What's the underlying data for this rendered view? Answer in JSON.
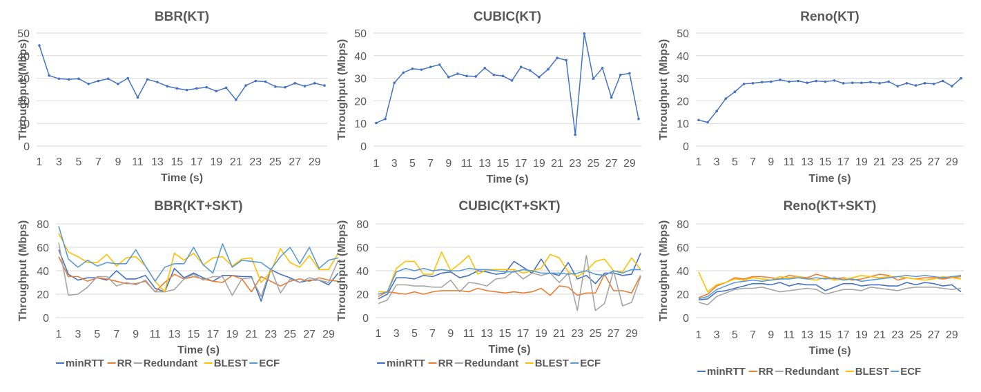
{
  "chart_data": [
    {
      "type": "line",
      "title": "BBR(KT)",
      "xlabel": "Time (s)",
      "ylabel": "Throughput (Mbps)",
      "ylim": [
        0,
        50
      ],
      "yticks": [
        0,
        10,
        20,
        30,
        40,
        50
      ],
      "x": [
        1,
        2,
        3,
        4,
        5,
        6,
        7,
        8,
        9,
        10,
        11,
        12,
        13,
        14,
        15,
        16,
        17,
        18,
        19,
        20,
        21,
        22,
        23,
        24,
        25,
        26,
        27,
        28,
        29,
        30
      ],
      "xtick_labels": [
        "1",
        "3",
        "5",
        "7",
        "9",
        "11",
        "13",
        "15",
        "17",
        "19",
        "21",
        "23",
        "25",
        "27",
        "29"
      ],
      "grid": true,
      "series": [
        {
          "values": [
            44.5,
            31.2,
            29.8,
            29.5,
            29.8,
            27.5,
            28.8,
            29.8,
            27.5,
            30,
            21.5,
            29.5,
            28.3,
            26.5,
            25.5,
            24.8,
            25.5,
            26,
            24.3,
            25.8,
            20.5,
            26.8,
            28.8,
            28.5,
            26.3,
            26,
            27.8,
            26.5,
            27.8,
            26.8
          ]
        }
      ]
    },
    {
      "type": "line",
      "title": "CUBIC(KT)",
      "xlabel": "Time (s)",
      "ylabel": "Throughput (Mbps)",
      "ylim": [
        0,
        50
      ],
      "yticks": [
        0,
        10,
        20,
        30,
        40,
        50
      ],
      "x": [
        1,
        2,
        3,
        4,
        5,
        6,
        7,
        8,
        9,
        10,
        11,
        12,
        13,
        14,
        15,
        16,
        17,
        18,
        19,
        20,
        21,
        22,
        23,
        24,
        25,
        26,
        27,
        28,
        29,
        30
      ],
      "xtick_labels": [
        "1",
        "3",
        "5",
        "7",
        "9",
        "11",
        "13",
        "15",
        "17",
        "19",
        "21",
        "23",
        "25",
        "27",
        "29"
      ],
      "grid": true,
      "series": [
        {
          "values": [
            10.2,
            12,
            28,
            32.5,
            34.2,
            33.8,
            35,
            36,
            30.5,
            32,
            31,
            30.8,
            34.5,
            31.5,
            31,
            29,
            35,
            33.5,
            30.5,
            34,
            39,
            38,
            5,
            49.8,
            29.8,
            34.5,
            21.5,
            31.5,
            32.2,
            12
          ]
        }
      ]
    },
    {
      "type": "line",
      "title": "Reno(KT)",
      "xlabel": "Time (s)",
      "ylabel": "Throughput (Mbps)",
      "ylim": [
        0,
        50
      ],
      "yticks": [
        0,
        10,
        20,
        30,
        40,
        50
      ],
      "x": [
        1,
        2,
        3,
        4,
        5,
        6,
        7,
        8,
        9,
        10,
        11,
        12,
        13,
        14,
        15,
        16,
        17,
        18,
        19,
        20,
        21,
        22,
        23,
        24,
        25,
        26,
        27,
        28,
        29,
        30
      ],
      "xtick_labels": [
        "1",
        "3",
        "5",
        "7",
        "9",
        "11",
        "13",
        "15",
        "17",
        "19",
        "21",
        "23",
        "25",
        "27",
        "29"
      ],
      "grid": true,
      "series": [
        {
          "values": [
            11.5,
            10.5,
            15.5,
            21,
            24,
            27.5,
            27.8,
            28.3,
            28.5,
            29.3,
            28.5,
            28.8,
            28,
            28.8,
            28.5,
            29,
            27.8,
            28,
            28,
            28.3,
            27.8,
            28.5,
            26.5,
            27.8,
            26.8,
            27.8,
            27.5,
            28.8,
            26.5,
            30
          ]
        }
      ]
    },
    {
      "type": "line",
      "title": "BBR(KT+SKT)",
      "xlabel": "Time (s)",
      "ylabel": "Throughput (Mbps)",
      "ylim": [
        0,
        80
      ],
      "yticks": [
        0,
        20,
        40,
        60,
        80
      ],
      "x": [
        1,
        2,
        3,
        4,
        5,
        6,
        7,
        8,
        9,
        10,
        11,
        12,
        13,
        14,
        15,
        16,
        17,
        18,
        19,
        20,
        21,
        22,
        23,
        24,
        25,
        26,
        27,
        28,
        29,
        30
      ],
      "xtick_labels": [
        "1",
        "3",
        "5",
        "7",
        "9",
        "11",
        "13",
        "15",
        "17",
        "19",
        "21",
        "23",
        "25",
        "27",
        "29"
      ],
      "grid": true,
      "legend": "bottom",
      "series": [
        {
          "name": "minRTT",
          "color": "#4472C4",
          "values": [
            58,
            37,
            32,
            34,
            34,
            32,
            40,
            33,
            33,
            36,
            25,
            22,
            42,
            34,
            38,
            34,
            31,
            36,
            36,
            35,
            35,
            14,
            41,
            37,
            34,
            30,
            32,
            32,
            28,
            38
          ]
        },
        {
          "name": "RR",
          "color": "#ED7D31",
          "values": [
            52,
            35,
            35,
            31,
            34,
            33,
            31,
            29,
            29,
            31,
            22,
            30,
            37,
            33,
            35,
            33,
            31,
            30,
            36,
            33,
            22,
            35,
            31,
            27,
            31,
            33,
            31,
            34,
            32,
            31
          ]
        },
        {
          "name": "Redundant",
          "color": "#A5A5A5",
          "values": [
            64,
            19,
            20,
            26,
            35,
            35,
            27,
            30,
            28,
            32,
            22,
            22,
            24,
            33,
            37,
            32,
            35,
            35,
            19,
            33,
            34,
            18,
            42,
            21,
            33,
            30,
            34,
            32,
            30,
            49
          ]
        },
        {
          "name": "BLEST",
          "color": "#FFC000",
          "values": [
            72,
            56,
            52,
            47,
            47,
            54,
            44,
            51,
            52,
            44,
            31,
            22,
            55,
            49,
            55,
            45,
            51,
            52,
            44,
            50,
            51,
            30,
            39,
            59,
            47,
            43,
            53,
            41,
            41,
            55
          ]
        },
        {
          "name": "ECF",
          "color": "#5B9BD5",
          "values": [
            78,
            50,
            43,
            49,
            44,
            47,
            46,
            46,
            58,
            44,
            31,
            43,
            46,
            46,
            60,
            45,
            38,
            63,
            43,
            49,
            48,
            47,
            41,
            52,
            60,
            46,
            60,
            42,
            49,
            51
          ]
        }
      ]
    },
    {
      "type": "line",
      "title": "CUBIC(KT+SKT)",
      "xlabel": "Time (s)",
      "ylabel": "Throughput (Mbps)",
      "ylim": [
        0,
        80
      ],
      "yticks": [
        0,
        20,
        40,
        60,
        80
      ],
      "x": [
        1,
        2,
        3,
        4,
        5,
        6,
        7,
        8,
        9,
        10,
        11,
        12,
        13,
        14,
        15,
        16,
        17,
        18,
        19,
        20,
        21,
        22,
        23,
        24,
        25,
        26,
        27,
        28,
        29,
        30
      ],
      "xtick_labels": [
        "1",
        "3",
        "5",
        "7",
        "9",
        "11",
        "13",
        "15",
        "17",
        "19",
        "21",
        "23",
        "25",
        "27",
        "29"
      ],
      "grid": true,
      "legend": "bottom",
      "series": [
        {
          "name": "minRTT",
          "color": "#4472C4",
          "values": [
            16,
            20,
            34,
            34,
            33,
            36,
            35,
            38,
            39,
            34,
            36,
            40,
            39,
            37,
            38,
            48,
            43,
            38,
            50,
            38,
            36,
            47,
            33,
            36,
            29,
            38,
            38,
            36,
            37,
            55
          ]
        },
        {
          "name": "RR",
          "color": "#ED7D31",
          "values": [
            18,
            22,
            21,
            20,
            22,
            20,
            22,
            23,
            23,
            23,
            22,
            25,
            23,
            22,
            21,
            22,
            21,
            22,
            25,
            19,
            27,
            26,
            19,
            21,
            21,
            37,
            23,
            23,
            21,
            36
          ]
        },
        {
          "name": "Redundant",
          "color": "#A5A5A5",
          "values": [
            12,
            15,
            28,
            28,
            27,
            27,
            26,
            26,
            32,
            22,
            30,
            29,
            27,
            33,
            34,
            40,
            33,
            38,
            36,
            38,
            30,
            38,
            6,
            53,
            6,
            12,
            40,
            10,
            13,
            35
          ]
        },
        {
          "name": "BLEST",
          "color": "#FFC000",
          "values": [
            22,
            22,
            42,
            48,
            48,
            37,
            37,
            56,
            40,
            46,
            53,
            37,
            41,
            41,
            41,
            41,
            38,
            40,
            42,
            54,
            51,
            39,
            35,
            40,
            48,
            50,
            40,
            39,
            51,
            41
          ]
        },
        {
          "name": "ECF",
          "color": "#5B9BD5",
          "values": [
            20,
            22,
            39,
            42,
            40,
            42,
            40,
            41,
            40,
            40,
            42,
            41,
            41,
            40,
            39,
            39,
            41,
            40,
            38,
            38,
            38,
            37,
            38,
            40,
            37,
            36,
            40,
            38,
            41,
            41
          ]
        }
      ]
    },
    {
      "type": "line",
      "title": "Reno(KT+SKT)",
      "xlabel": "Time (s)",
      "ylabel": "Throughput (Mbps)",
      "ylim": [
        0,
        80
      ],
      "yticks": [
        0,
        20,
        40,
        60,
        80
      ],
      "x": [
        1,
        2,
        3,
        4,
        5,
        6,
        7,
        8,
        9,
        10,
        11,
        12,
        13,
        14,
        15,
        16,
        17,
        18,
        19,
        20,
        21,
        22,
        23,
        24,
        25,
        26,
        27,
        28,
        29,
        30
      ],
      "xtick_labels": [
        "1",
        "3",
        "5",
        "7",
        "9",
        "11",
        "13",
        "15",
        "17",
        "19",
        "21",
        "23",
        "25",
        "27",
        "29"
      ],
      "grid": true,
      "legend": "bottom",
      "series": [
        {
          "name": "minRTT",
          "color": "#4472C4",
          "values": [
            15,
            16,
            22,
            23,
            25,
            27,
            29,
            29,
            28,
            30,
            27,
            29,
            28,
            28,
            23,
            26,
            29,
            29,
            27,
            28,
            28,
            27,
            27,
            30,
            28,
            30,
            29,
            27,
            28,
            22
          ]
        },
        {
          "name": "RR",
          "color": "#ED7D31",
          "values": [
            17,
            20,
            27,
            30,
            34,
            33,
            35,
            35,
            34,
            33,
            36,
            35,
            34,
            37,
            35,
            33,
            34,
            32,
            33,
            35,
            37,
            36,
            32,
            34,
            33,
            34,
            34,
            33,
            34,
            35
          ]
        },
        {
          "name": "Redundant",
          "color": "#A5A5A5",
          "values": [
            13,
            11,
            18,
            21,
            24,
            25,
            25,
            26,
            24,
            22,
            23,
            24,
            25,
            24,
            20,
            22,
            24,
            24,
            23,
            26,
            25,
            24,
            23,
            25,
            26,
            26,
            26,
            25,
            24,
            25
          ]
        },
        {
          "name": "BLEST",
          "color": "#FFC000",
          "values": [
            39,
            22,
            28,
            30,
            33,
            32,
            34,
            33,
            32,
            35,
            34,
            35,
            33,
            32,
            34,
            32,
            33,
            34,
            36,
            35,
            34,
            35,
            35,
            34,
            33,
            32,
            33,
            35,
            34,
            33
          ]
        },
        {
          "name": "ECF",
          "color": "#5B9BD5",
          "values": [
            16,
            18,
            24,
            27,
            30,
            31,
            32,
            31,
            32,
            33,
            33,
            34,
            33,
            34,
            33,
            34,
            32,
            33,
            31,
            32,
            33,
            34,
            35,
            36,
            35,
            36,
            35,
            34,
            35,
            36
          ]
        }
      ]
    }
  ]
}
